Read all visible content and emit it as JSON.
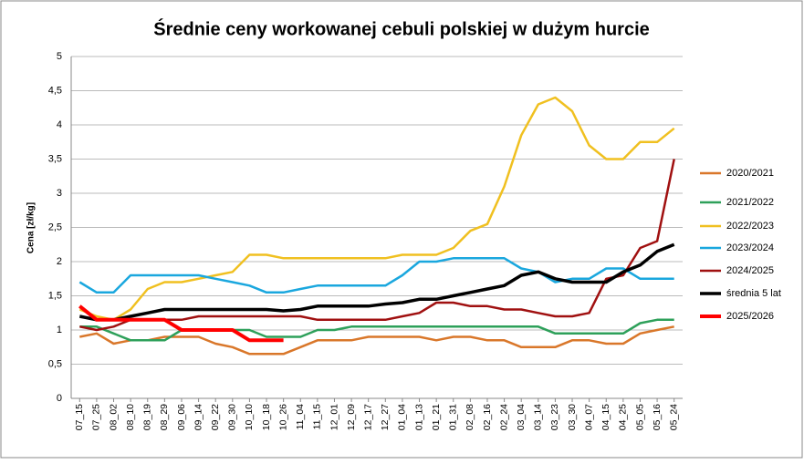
{
  "chart_data": {
    "type": "line",
    "title": "Średnie ceny workowanej cebuli polskiej w dużym hurcie",
    "y_label": "Cena [zł/kg]",
    "categories": [
      "07_15",
      "07_25",
      "08_02",
      "08_10",
      "08_19",
      "08_29",
      "09_06",
      "09_14",
      "09_22",
      "09_30",
      "10_10",
      "10_18",
      "10_26",
      "11_04",
      "11_15",
      "12_01",
      "12_09",
      "12_17",
      "12_27",
      "01_04",
      "01_13",
      "01_21",
      "01_31",
      "02_08",
      "02_16",
      "02_24",
      "03_04",
      "03_14",
      "03_23",
      "03_30",
      "04_07",
      "04_15",
      "04_25",
      "05_05",
      "05_16",
      "05_24"
    ],
    "ylim": [
      0,
      5
    ],
    "yticks": [
      0,
      {
        "value": 0.5,
        "label": "0,5"
      },
      1,
      {
        "value": 1.5,
        "label": "1,5"
      },
      2,
      {
        "value": 2.5,
        "label": "2,5"
      },
      3,
      {
        "value": 3.5,
        "label": "3,5"
      },
      4,
      {
        "value": 4.5,
        "label": "4,5"
      },
      5
    ],
    "grid": true,
    "legend": "right",
    "series": [
      {
        "name": "2020/2021",
        "color": "#d9772a",
        "width": 2.5,
        "values": [
          0.9,
          0.95,
          0.8,
          0.85,
          0.85,
          0.9,
          0.9,
          0.9,
          0.8,
          0.75,
          0.65,
          0.65,
          0.65,
          0.75,
          0.85,
          0.85,
          0.85,
          0.9,
          0.9,
          0.9,
          0.9,
          0.85,
          0.9,
          0.9,
          0.85,
          0.85,
          0.75,
          0.75,
          0.75,
          0.85,
          0.85,
          0.8,
          0.8,
          0.95,
          1.0,
          1.05
        ]
      },
      {
        "name": "2021/2022",
        "color": "#2ea05a",
        "width": 2.5,
        "values": [
          1.05,
          1.05,
          0.95,
          0.85,
          0.85,
          0.85,
          1.0,
          1.0,
          1.0,
          1.0,
          1.0,
          0.9,
          0.9,
          0.9,
          1.0,
          1.0,
          1.05,
          1.05,
          1.05,
          1.05,
          1.05,
          1.05,
          1.05,
          1.05,
          1.05,
          1.05,
          1.05,
          1.05,
          0.95,
          0.95,
          0.95,
          0.95,
          0.95,
          1.1,
          1.15,
          1.15
        ]
      },
      {
        "name": "2022/2023",
        "color": "#f0c020",
        "width": 2.5,
        "values": [
          1.3,
          1.2,
          1.15,
          1.3,
          1.6,
          1.7,
          1.7,
          1.75,
          1.8,
          1.85,
          2.1,
          2.1,
          2.05,
          2.05,
          2.05,
          2.05,
          2.05,
          2.05,
          2.05,
          2.1,
          2.1,
          2.1,
          2.2,
          2.45,
          2.55,
          3.1,
          3.85,
          4.3,
          4.4,
          4.2,
          3.7,
          3.5,
          3.5,
          3.75,
          3.75,
          3.95
        ]
      },
      {
        "name": "2023/2024",
        "color": "#1aa7de",
        "width": 2.5,
        "values": [
          1.7,
          1.55,
          1.55,
          1.8,
          1.8,
          1.8,
          1.8,
          1.8,
          1.75,
          1.7,
          1.65,
          1.55,
          1.55,
          1.6,
          1.65,
          1.65,
          1.65,
          1.65,
          1.65,
          1.8,
          2.0,
          2.0,
          2.05,
          2.05,
          2.05,
          2.05,
          1.9,
          1.85,
          1.7,
          1.75,
          1.75,
          1.9,
          1.9,
          1.75,
          1.75,
          1.75
        ]
      },
      {
        "name": "2024/2025",
        "color": "#a01010",
        "width": 2.5,
        "values": [
          1.05,
          1.0,
          1.05,
          1.15,
          1.15,
          1.15,
          1.15,
          1.2,
          1.2,
          1.2,
          1.2,
          1.2,
          1.2,
          1.2,
          1.15,
          1.15,
          1.15,
          1.15,
          1.15,
          1.2,
          1.25,
          1.4,
          1.4,
          1.35,
          1.35,
          1.3,
          1.3,
          1.25,
          1.2,
          1.2,
          1.25,
          1.75,
          1.8,
          2.2,
          2.3,
          3.5
        ]
      },
      {
        "name": "średnia 5 lat",
        "color": "#000000",
        "width": 3.5,
        "values": [
          1.2,
          1.15,
          1.15,
          1.2,
          1.25,
          1.3,
          1.3,
          1.3,
          1.3,
          1.3,
          1.3,
          1.3,
          1.28,
          1.3,
          1.35,
          1.35,
          1.35,
          1.35,
          1.38,
          1.4,
          1.45,
          1.45,
          1.5,
          1.55,
          1.6,
          1.65,
          1.8,
          1.85,
          1.75,
          1.7,
          1.7,
          1.7,
          1.85,
          1.95,
          2.15,
          2.25
        ]
      },
      {
        "name": "2025/2026",
        "color": "#ff0000",
        "width": 4,
        "values": [
          1.35,
          1.15,
          1.15,
          1.15,
          1.15,
          1.15,
          1.0,
          1.0,
          1.0,
          1.0,
          0.85,
          0.85,
          0.85,
          null,
          null,
          null,
          null,
          null,
          null,
          null,
          null,
          null,
          null,
          null,
          null,
          null,
          null,
          null,
          null,
          null,
          null,
          null,
          null,
          null,
          null,
          null
        ]
      }
    ]
  }
}
